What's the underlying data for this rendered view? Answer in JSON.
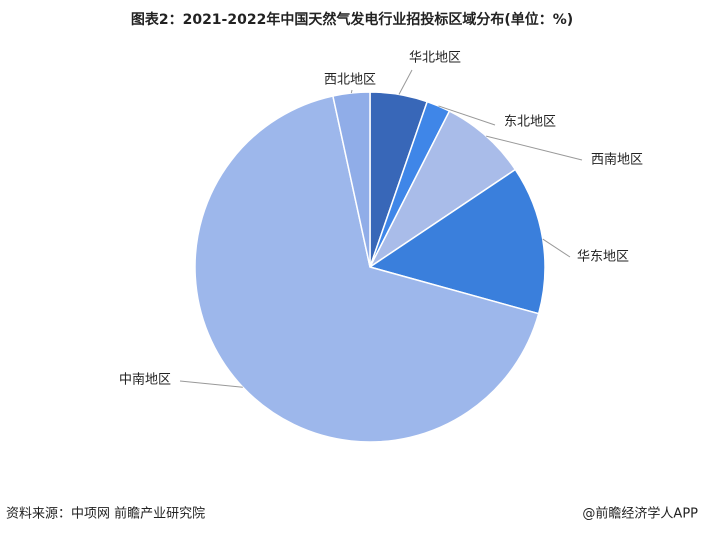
{
  "chart_data": {
    "type": "pie",
    "title": "图表2：2021-2022年中国天然气发电行业招投标区域分布(单位：%)",
    "categories": [
      "华北地区",
      "东北地区",
      "西南地区",
      "华东地区",
      "中南地区",
      "西北地区"
    ],
    "values": [
      5.3,
      2.2,
      8.1,
      13.7,
      67.3,
      3.4
    ],
    "colors": [
      "#3867b8",
      "#3f86e8",
      "#a9bce9",
      "#3a7fdc",
      "#9db7eb",
      "#90ade8"
    ],
    "source": "资料来源：中项网 前瞻产业研究院",
    "credit": "@前瞻经济学人APP"
  }
}
